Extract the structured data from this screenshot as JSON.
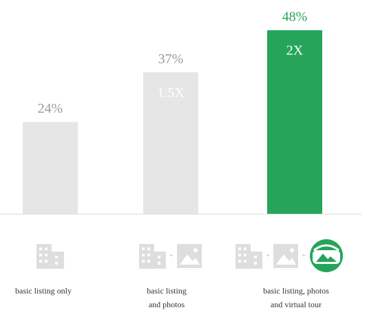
{
  "chart_data": {
    "type": "bar",
    "categories": [
      "basic listing only",
      "basic listing\nand photos",
      "basic listing, photos\nand virtual tour"
    ],
    "values": [
      24,
      37,
      48
    ],
    "value_labels": [
      "24%",
      "37%",
      "48%"
    ],
    "multipliers": [
      null,
      "1.5X",
      "2X"
    ],
    "colors": [
      "#e6e6e6",
      "#e6e6e6",
      "#26a55a"
    ],
    "label_colors": [
      "#999999",
      "#999999",
      "#26a55a"
    ]
  }
}
